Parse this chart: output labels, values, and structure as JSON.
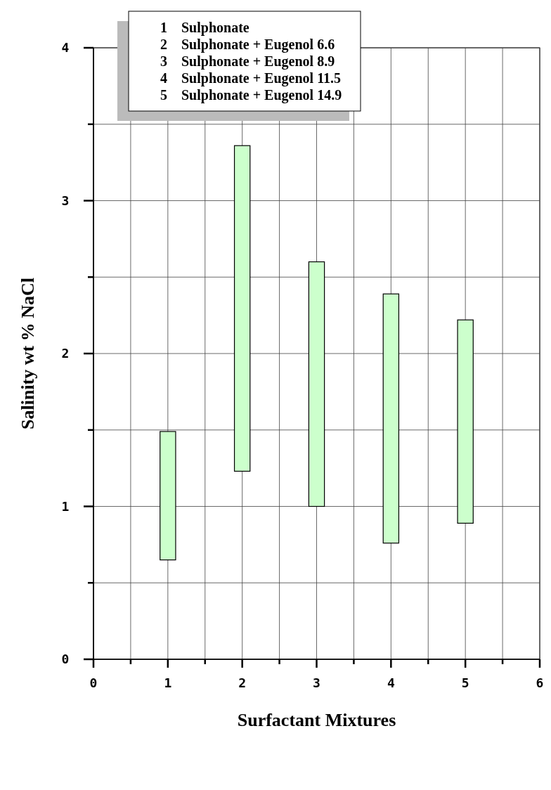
{
  "chart_data": {
    "type": "bar",
    "xlabel": "Surfactant Mixtures",
    "ylabel": "Salinity wt % NaCl",
    "x": [
      1,
      2,
      3,
      4,
      5
    ],
    "base": [
      0.65,
      1.23,
      1.0,
      0.76,
      0.89
    ],
    "values": [
      0.84,
      2.13,
      1.6,
      1.63,
      1.33
    ],
    "color": "#ccffcc",
    "xlim": [
      0,
      6
    ],
    "xticks": [
      0,
      {
        "value": 0.5,
        "label": null
      },
      1,
      {
        "value": 1.5,
        "label": null
      },
      2,
      {
        "value": 2.5,
        "label": null
      },
      3,
      {
        "value": 3.5,
        "label": null
      },
      4,
      {
        "value": 4.5,
        "label": null
      },
      5,
      {
        "value": 5.5,
        "label": null
      },
      6
    ],
    "ylim": [
      0,
      4
    ],
    "yticks": [
      0,
      {
        "value": 0.5,
        "label": null
      },
      1,
      {
        "value": 1.5,
        "label": null
      },
      2,
      {
        "value": 2.5,
        "label": null
      },
      3,
      {
        "value": 3.5,
        "label": null
      },
      4
    ],
    "grid": true,
    "annotations": [
      "1    Sulphonate",
      "2    Sulphonate + Eugenol 6.6",
      "3    Sulphonate + Eugenol 8.9",
      "4    Sulphonate + Eugenol 11.5",
      "5    Sulphonate + Eugenol 14.9"
    ]
  }
}
